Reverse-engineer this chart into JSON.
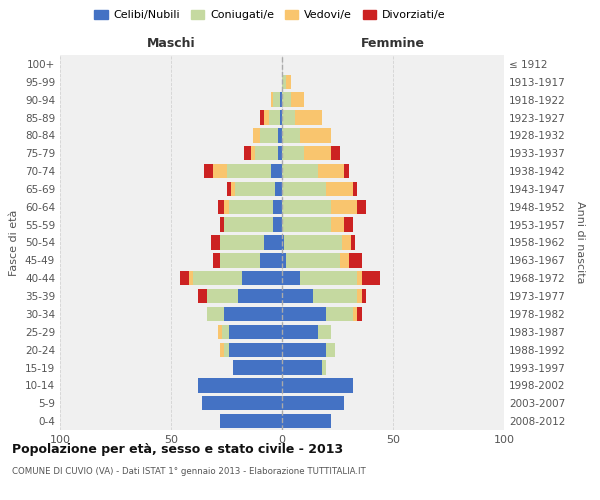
{
  "age_groups": [
    "0-4",
    "5-9",
    "10-14",
    "15-19",
    "20-24",
    "25-29",
    "30-34",
    "35-39",
    "40-44",
    "45-49",
    "50-54",
    "55-59",
    "60-64",
    "65-69",
    "70-74",
    "75-79",
    "80-84",
    "85-89",
    "90-94",
    "95-99",
    "100+"
  ],
  "birth_years": [
    "2008-2012",
    "2003-2007",
    "1998-2002",
    "1993-1997",
    "1988-1992",
    "1983-1987",
    "1978-1982",
    "1973-1977",
    "1968-1972",
    "1963-1967",
    "1958-1962",
    "1953-1957",
    "1948-1952",
    "1943-1947",
    "1938-1942",
    "1933-1937",
    "1928-1932",
    "1923-1927",
    "1918-1922",
    "1913-1917",
    "≤ 1912"
  ],
  "male_celibi": [
    28,
    36,
    38,
    22,
    24,
    24,
    26,
    20,
    18,
    10,
    8,
    4,
    4,
    3,
    5,
    2,
    2,
    1,
    1,
    0,
    0
  ],
  "male_coniugati": [
    0,
    0,
    0,
    0,
    2,
    3,
    8,
    14,
    22,
    18,
    20,
    22,
    20,
    18,
    20,
    10,
    8,
    5,
    3,
    0,
    0
  ],
  "male_vedovi": [
    0,
    0,
    0,
    0,
    2,
    2,
    0,
    0,
    2,
    0,
    0,
    0,
    2,
    2,
    6,
    2,
    3,
    2,
    1,
    0,
    0
  ],
  "male_divorziati": [
    0,
    0,
    0,
    0,
    0,
    0,
    0,
    4,
    4,
    3,
    4,
    2,
    3,
    2,
    4,
    3,
    0,
    2,
    0,
    0,
    0
  ],
  "female_nubili": [
    22,
    28,
    32,
    18,
    20,
    16,
    20,
    14,
    8,
    2,
    1,
    0,
    0,
    0,
    0,
    0,
    0,
    0,
    0,
    0,
    0
  ],
  "female_coniugate": [
    0,
    0,
    0,
    2,
    4,
    6,
    12,
    20,
    26,
    24,
    26,
    22,
    22,
    20,
    16,
    10,
    8,
    6,
    4,
    2,
    0
  ],
  "female_vedove": [
    0,
    0,
    0,
    0,
    0,
    0,
    2,
    2,
    2,
    4,
    4,
    6,
    12,
    12,
    12,
    12,
    14,
    12,
    6,
    2,
    0
  ],
  "female_divorziate": [
    0,
    0,
    0,
    0,
    0,
    0,
    2,
    2,
    8,
    6,
    2,
    4,
    4,
    2,
    2,
    4,
    0,
    0,
    0,
    0,
    0
  ],
  "colors": {
    "celibi_nubili": "#4472c4",
    "coniugati": "#c5d9a0",
    "vedovi": "#f9c56e",
    "divorziati": "#cc2222"
  },
  "xlim": [
    -100,
    100
  ],
  "xticks": [
    -100,
    -50,
    0,
    50,
    100
  ],
  "xticklabels": [
    "100",
    "50",
    "0",
    "50",
    "100"
  ],
  "title_main": "Popolazione per età, sesso e stato civile - 2013",
  "title_sub": "COMUNE DI CUVIO (VA) - Dati ISTAT 1° gennaio 2013 - Elaborazione TUTTITALIA.IT",
  "ylabel_left": "Fasce di età",
  "ylabel_right": "Anni di nascita",
  "label_maschi": "Maschi",
  "label_femmine": "Femmine",
  "legend_labels": [
    "Celibi/Nubili",
    "Coniugati/e",
    "Vedovi/e",
    "Divorziati/e"
  ],
  "bg_color": "#f0f0f0",
  "bar_height": 0.8
}
